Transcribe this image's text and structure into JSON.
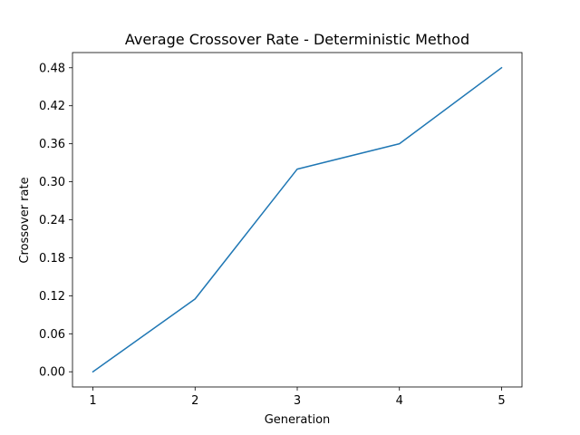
{
  "chart_data": {
    "type": "line",
    "title": "Average Crossover Rate - Deterministic Method",
    "xlabel": "Generation",
    "ylabel": "Crossover rate",
    "x": [
      1,
      2,
      3,
      4,
      5
    ],
    "series": [
      {
        "values": [
          0.0,
          0.115,
          0.32,
          0.36,
          0.48
        ],
        "color": "#1f77b4"
      }
    ],
    "xticks": [
      "1",
      "2",
      "3",
      "4",
      "5"
    ],
    "yticks": [
      "0.00",
      "0.06",
      "0.12",
      "0.18",
      "0.24",
      "0.30",
      "0.36",
      "0.42",
      "0.48"
    ],
    "xlim": [
      0.8,
      5.2
    ],
    "ylim": [
      -0.024,
      0.504
    ],
    "grid": false,
    "legend": "none"
  }
}
